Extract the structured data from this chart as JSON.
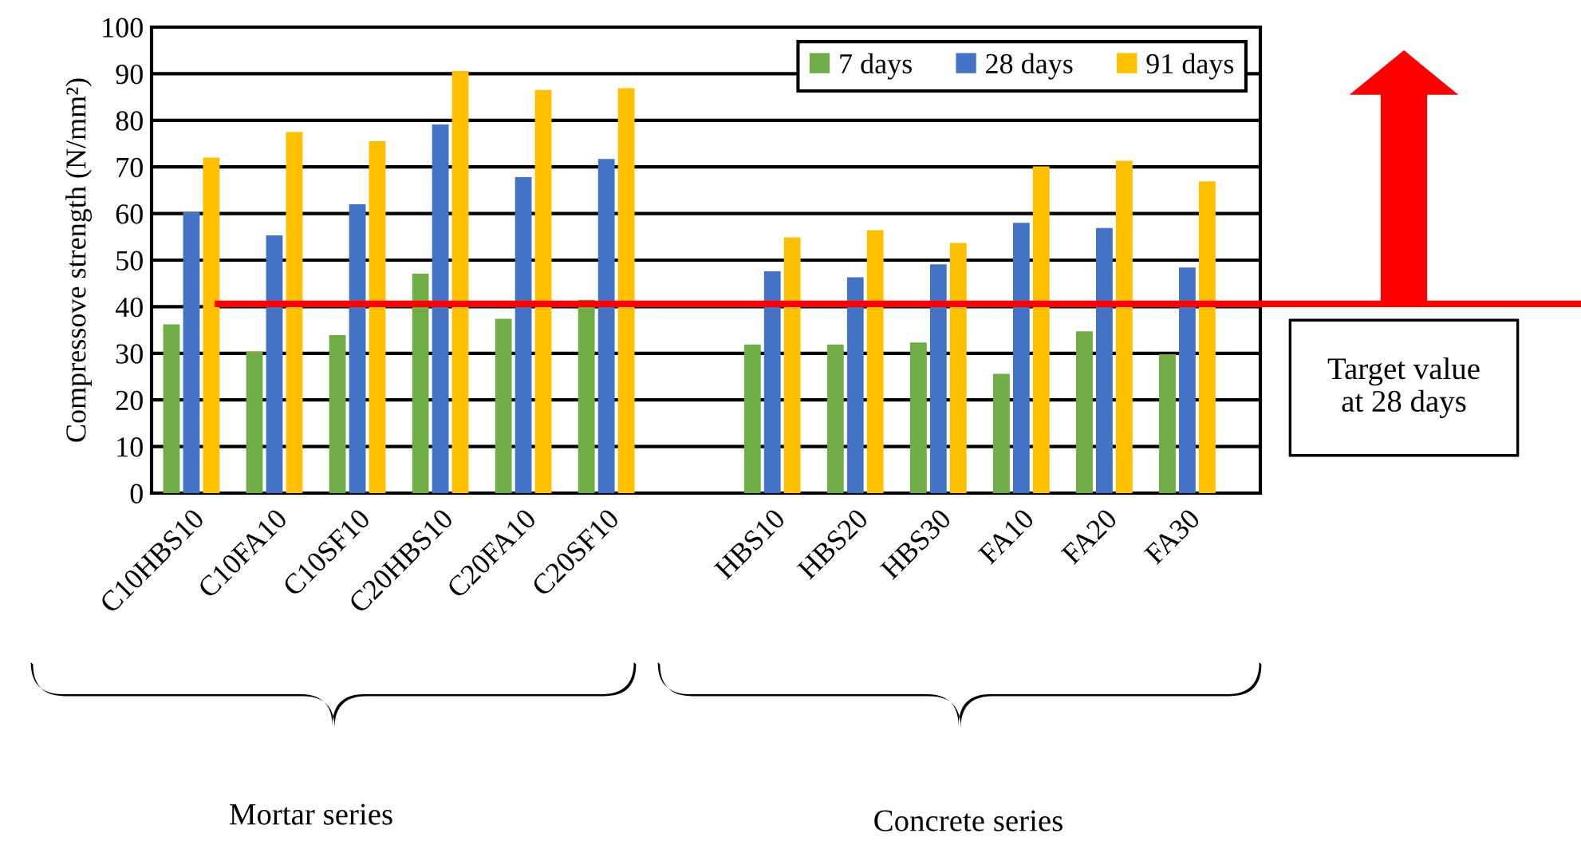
{
  "chart_data": {
    "type": "bar",
    "ylabel": "Compressove strength (N/mm²)",
    "categories": [
      "C10HBS10",
      "C10FA10",
      "C10SF10",
      "C20HBS10",
      "C20FA10",
      "C20SF10",
      null,
      "HBS10",
      "HBS20",
      "HBS30",
      "FA10",
      "FA20",
      "FA30"
    ],
    "series": [
      {
        "name": "7 days",
        "color": "#70ad47",
        "values": [
          36.2,
          30.4,
          33.9,
          47.1,
          37.4,
          41.5,
          null,
          31.9,
          31.9,
          32.3,
          25.6,
          34.7,
          29.8
        ]
      },
      {
        "name": "28 days",
        "color": "#4472c4",
        "values": [
          60.3,
          55.3,
          62.0,
          79.1,
          67.8,
          71.7,
          null,
          47.6,
          46.3,
          49.1,
          58.0,
          56.9,
          48.4
        ]
      },
      {
        "name": "91 days",
        "color": "#ffc000",
        "values": [
          72.0,
          77.5,
          75.5,
          90.6,
          86.5,
          86.9,
          null,
          54.9,
          56.4,
          53.7,
          70.1,
          71.3,
          66.9
        ]
      }
    ],
    "ylim": [
      0,
      100
    ],
    "yticks": [
      0,
      10,
      20,
      30,
      40,
      50,
      60,
      70,
      80,
      90,
      100
    ],
    "grid": "y",
    "legend": "top right",
    "ref_lines": [
      {
        "axis": "y",
        "value": 40.6,
        "label": "Target value\nat 28 days",
        "color": "#ff0000"
      }
    ],
    "annotations": [
      "Mortar series",
      "Concrete series"
    ]
  }
}
